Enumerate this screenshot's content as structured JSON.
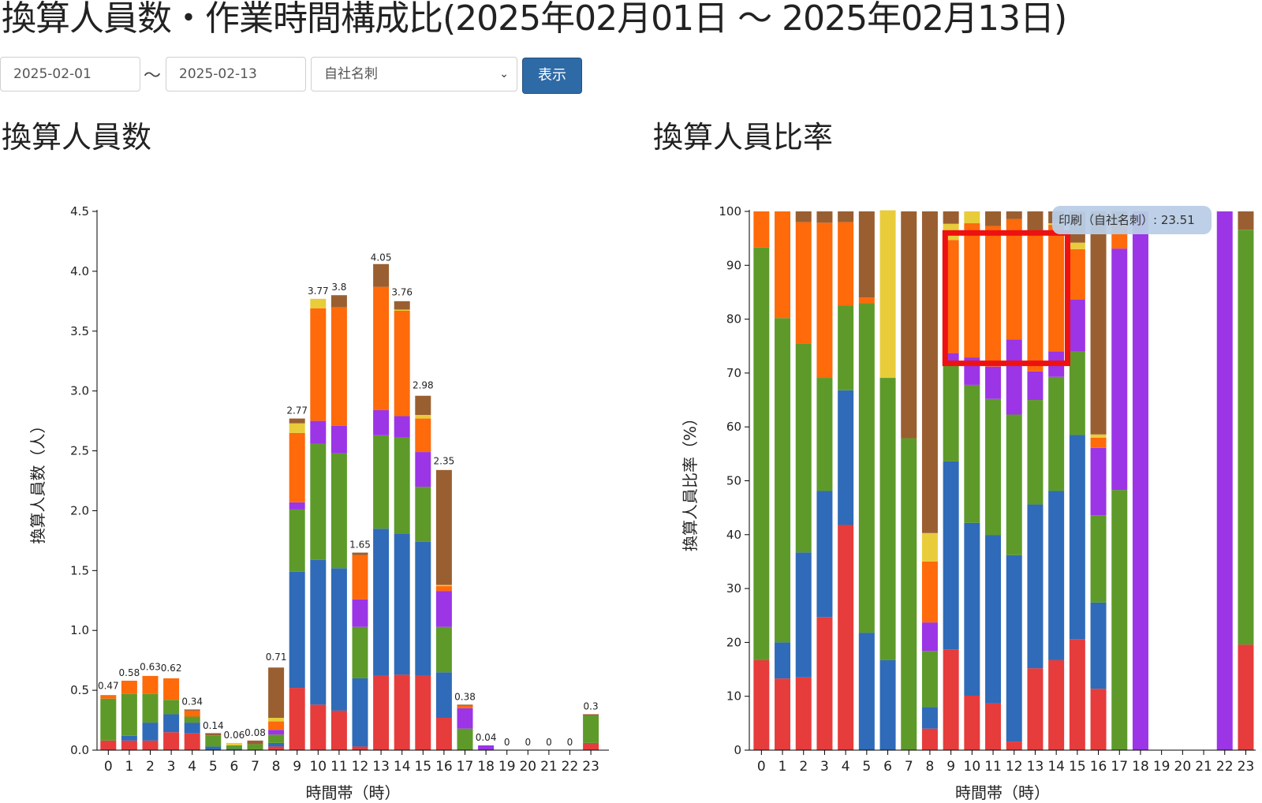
{
  "title": "換算人員数・作業時間構成比(2025年02月01日 ～ 2025年02月13日)",
  "filters": {
    "start_date": "2025-02-01",
    "separator": "～",
    "end_date": "2025-02-13",
    "category": "自社名刺",
    "category_caret": "⌄",
    "submit_label": "表示"
  },
  "colors": {
    "red": "#e63c3c",
    "blue": "#2f6bb8",
    "green": "#5e9a2a",
    "purple": "#9b35e6",
    "orange": "#ff6a0a",
    "yellow": "#e8cc3a",
    "brown": "#9a5f30",
    "highlight": "#ee1111",
    "tooltip_bg": "#b9cde6"
  },
  "chart_data": [
    {
      "type": "bar",
      "stacked": true,
      "section_title": "換算人員数",
      "xlabel": "時間帯（時）",
      "ylabel": "換算人員数（人）",
      "ylim": [
        0,
        4.5
      ],
      "yticks": [
        "0.0",
        "0.5",
        "1.0",
        "1.5",
        "2.0",
        "2.5",
        "3.0",
        "3.5",
        "4.0",
        "4.5"
      ],
      "categories": [
        "0",
        "1",
        "2",
        "3",
        "4",
        "5",
        "6",
        "7",
        "8",
        "9",
        "10",
        "11",
        "12",
        "13",
        "14",
        "15",
        "16",
        "17",
        "18",
        "19",
        "20",
        "21",
        "22",
        "23"
      ],
      "totals_labels": [
        "0.47",
        "0.58",
        "0.63",
        "0.62",
        "0.34",
        "0.14",
        "0.06",
        "0.08",
        "0.71",
        "2.77",
        "3.77",
        "3.8",
        "1.65",
        "4.05",
        "3.76",
        "2.98",
        "2.35",
        "0.38",
        "0.04",
        "0",
        "0",
        "0",
        "0",
        "0.3"
      ],
      "stack_order": [
        "red",
        "blue",
        "green",
        "purple",
        "orange",
        "yellow",
        "brown"
      ],
      "series": [
        {
          "color": "red",
          "values": [
            0.08,
            0.08,
            0.08,
            0.15,
            0.14,
            0,
            0,
            0,
            0.03,
            0.52,
            0.38,
            0.33,
            0.03,
            0.62,
            0.63,
            0.62,
            0.27,
            0,
            0,
            0,
            0,
            0,
            0,
            0.06
          ]
        },
        {
          "color": "blue",
          "values": [
            0,
            0.04,
            0.15,
            0.15,
            0.09,
            0.03,
            0.01,
            0,
            0.03,
            0.97,
            1.21,
            1.19,
            0.57,
            1.23,
            1.18,
            1.12,
            0.38,
            0,
            0,
            0,
            0,
            0,
            0,
            0
          ]
        },
        {
          "color": "green",
          "values": [
            0.35,
            0.35,
            0.24,
            0.12,
            0.05,
            0.09,
            0.03,
            0.05,
            0.07,
            0.52,
            0.97,
            0.96,
            0.43,
            0.78,
            0.8,
            0.46,
            0.38,
            0.18,
            0,
            0,
            0,
            0,
            0,
            0.23
          ]
        },
        {
          "color": "purple",
          "values": [
            0,
            0,
            0,
            0,
            0,
            0,
            0,
            0,
            0.04,
            0.06,
            0.19,
            0.23,
            0.23,
            0.21,
            0.18,
            0.29,
            0.3,
            0.17,
            0.04,
            0,
            0,
            0,
            0,
            0
          ]
        },
        {
          "color": "orange",
          "values": [
            0.03,
            0.11,
            0.15,
            0.18,
            0.05,
            0.002,
            0,
            0,
            0.07,
            0.58,
            0.94,
            0.99,
            0.37,
            1.03,
            0.88,
            0.28,
            0.04,
            0.02,
            0,
            0,
            0,
            0,
            0,
            0
          ]
        },
        {
          "color": "yellow",
          "values": [
            0,
            0,
            0,
            0,
            0,
            0,
            0.02,
            0,
            0.03,
            0.08,
            0.08,
            0,
            0,
            0,
            0.01,
            0.03,
            0.01,
            0,
            0,
            0,
            0,
            0,
            0,
            0
          ]
        },
        {
          "color": "brown",
          "values": [
            0,
            0,
            0,
            0,
            0.01,
            0.02,
            0,
            0.03,
            0.42,
            0.04,
            0,
            0.1,
            0.02,
            0.19,
            0.07,
            0.16,
            0.96,
            0.01,
            0,
            0,
            0,
            0,
            0,
            0.01
          ]
        }
      ]
    },
    {
      "type": "bar",
      "stacked": true,
      "percent": true,
      "section_title": "換算人員比率",
      "xlabel": "時間帯（時）",
      "ylabel": "換算人員比率（%）",
      "ylim": [
        0,
        100
      ],
      "yticks": [
        "0",
        "10",
        "20",
        "30",
        "40",
        "50",
        "60",
        "70",
        "80",
        "90",
        "100"
      ],
      "categories": [
        "0",
        "1",
        "2",
        "3",
        "4",
        "5",
        "6",
        "7",
        "8",
        "9",
        "10",
        "11",
        "12",
        "13",
        "14",
        "15",
        "16",
        "17",
        "18",
        "19",
        "20",
        "21",
        "22",
        "23"
      ],
      "stack_order": [
        "red",
        "blue",
        "green",
        "purple",
        "orange",
        "yellow",
        "brown"
      ],
      "series": [
        {
          "color": "red",
          "values": [
            16.7,
            13.3,
            13.5,
            24.7,
            41.8,
            0,
            0,
            0,
            4,
            18.7,
            10.1,
            8.7,
            1.6,
            15.2,
            16.7,
            20.6,
            11.4,
            0,
            0,
            0,
            0,
            0,
            0,
            19.6
          ]
        },
        {
          "color": "blue",
          "values": [
            0,
            6.7,
            23.2,
            23.4,
            25.0,
            21.8,
            16.7,
            0,
            4,
            34.9,
            32.1,
            31.2,
            34.6,
            30.4,
            31.4,
            37.9,
            16.0,
            0,
            0,
            0,
            0,
            0,
            0,
            0
          ]
        },
        {
          "color": "green",
          "values": [
            76.6,
            60.2,
            38.8,
            21.0,
            15.7,
            61.2,
            52.4,
            57.9,
            10.4,
            18.1,
            25.6,
            25.3,
            26.1,
            19.4,
            21.2,
            15.5,
            16.2,
            48.3,
            0,
            0,
            0,
            0,
            0,
            77.0
          ]
        },
        {
          "color": "purple",
          "values": [
            0,
            0,
            0,
            0,
            0,
            0,
            0,
            0,
            5.3,
            2.0,
            5.1,
            6.0,
            13.9,
            5.3,
            4.7,
            9.6,
            12.5,
            44.8,
            100,
            0,
            0,
            0,
            100,
            0
          ]
        },
        {
          "color": "orange",
          "values": [
            6.7,
            19.8,
            22.5,
            28.8,
            15.5,
            1.0,
            0,
            0,
            11.3,
            21.0,
            24.9,
            26.1,
            22.4,
            25.3,
            23.5,
            9.4,
            1.9,
            4.3,
            0,
            0,
            0,
            0,
            0,
            0
          ]
        },
        {
          "color": "yellow",
          "values": [
            0,
            0,
            0,
            0,
            0,
            0,
            31.1,
            0,
            5.3,
            3.0,
            2.2,
            0,
            0,
            0,
            0.3,
            1.2,
            0.6,
            0,
            0,
            0,
            0,
            0,
            0,
            0
          ]
        },
        {
          "color": "brown",
          "values": [
            0,
            0,
            2.0,
            2.1,
            2.0,
            16.0,
            0,
            42.1,
            59.7,
            2.3,
            0,
            2.7,
            1.4,
            4.4,
            2.2,
            5.8,
            41.4,
            2.6,
            0,
            0,
            0,
            0,
            0,
            3.4
          ]
        }
      ],
      "tooltip": "印刷（自社名刺）: 23.51"
    }
  ]
}
